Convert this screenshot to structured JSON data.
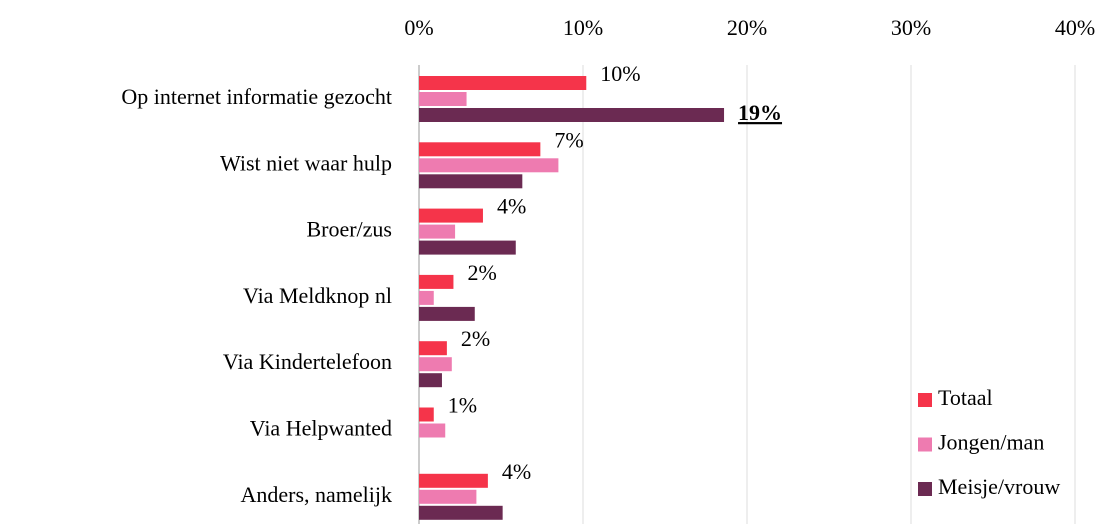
{
  "chart_data": {
    "type": "hbar",
    "categories": [
      "Op internet informatie gezocht",
      "Wist niet waar hulp",
      "Broer/zus",
      "Via Meldknop nl",
      "Via Kindertelefoon",
      "Via Helpwanted",
      "Anders, namelijk"
    ],
    "series": [
      {
        "name": "Totaal",
        "color": "#f5344a",
        "values": [
          10.2,
          7.4,
          3.9,
          2.1,
          1.7,
          0.9,
          4.2
        ],
        "value_labels": [
          "10%",
          "7%",
          "4%",
          "2%",
          "2%",
          "1%",
          "4%"
        ]
      },
      {
        "name": "Jongen/man",
        "color": "#ee7bb0",
        "values": [
          2.9,
          8.5,
          2.2,
          0.9,
          2.0,
          1.6,
          3.5
        ]
      },
      {
        "name": "Meisje/vrouw",
        "color": "#6b2a52",
        "values": [
          18.6,
          6.3,
          5.9,
          3.4,
          1.4,
          0,
          5.1
        ],
        "value_labels": [
          "19%",
          null,
          null,
          null,
          null,
          null,
          null
        ]
      }
    ],
    "xlim": [
      0,
      40
    ],
    "xticks": [
      {
        "value": 0,
        "label": "0%"
      },
      {
        "value": 10,
        "label": "10%"
      },
      {
        "value": 20,
        "label": "20%"
      },
      {
        "value": 30,
        "label": "30%"
      },
      {
        "value": 40,
        "label": "40%"
      }
    ],
    "grid": true,
    "legend": "lower right"
  }
}
